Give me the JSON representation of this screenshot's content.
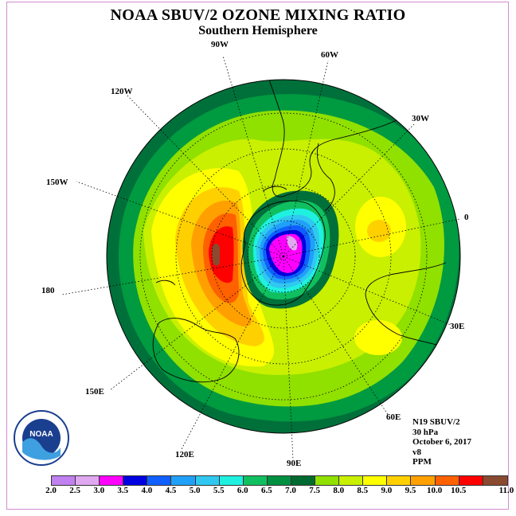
{
  "title": "NOAA SBUV/2 OZONE MIXING RATIO",
  "subtitle": "Southern Hemisphere",
  "longitude_labels": {
    "w90": "90W",
    "w60": "60W",
    "w30": "30W",
    "w120": "120W",
    "w150": "150W",
    "e0": "0",
    "w180": "180",
    "e30": "30E",
    "e150": "150E",
    "e60": "60E",
    "e120": "120E",
    "e90": "90E"
  },
  "info": {
    "satellite": "N19 SBUV/2",
    "level": "30 hPa",
    "date": "October 6, 2017",
    "version": "v8",
    "units": "PPM"
  },
  "logo": {
    "text": "NOAA",
    "ring_text": "NATIONAL OCEANIC AND ATMOSPHERIC ADMINISTRATION · U.S. DEPARTMENT OF COMMERCE"
  },
  "colorbar": {
    "ticks": [
      "2.0",
      "2.5",
      "3.0",
      "3.5",
      "4.0",
      "4.5",
      "5.0",
      "5.5",
      "6.0",
      "6.5",
      "7.0",
      "7.5",
      "8.0",
      "8.5",
      "9.0",
      "9.5",
      "10.0",
      "10.5",
      "11.0"
    ],
    "colors": [
      "#c080f0",
      "#e0a8f0",
      "#ff00ff",
      "#0000e0",
      "#1060ff",
      "#20a0f8",
      "#30c8f0",
      "#20f0e0",
      "#10c060",
      "#009040",
      "#006a30",
      "#90e000",
      "#c8f000",
      "#ffff00",
      "#ffd000",
      "#ffa000",
      "#ff6000",
      "#ff0000",
      "#8a4a30"
    ]
  }
}
